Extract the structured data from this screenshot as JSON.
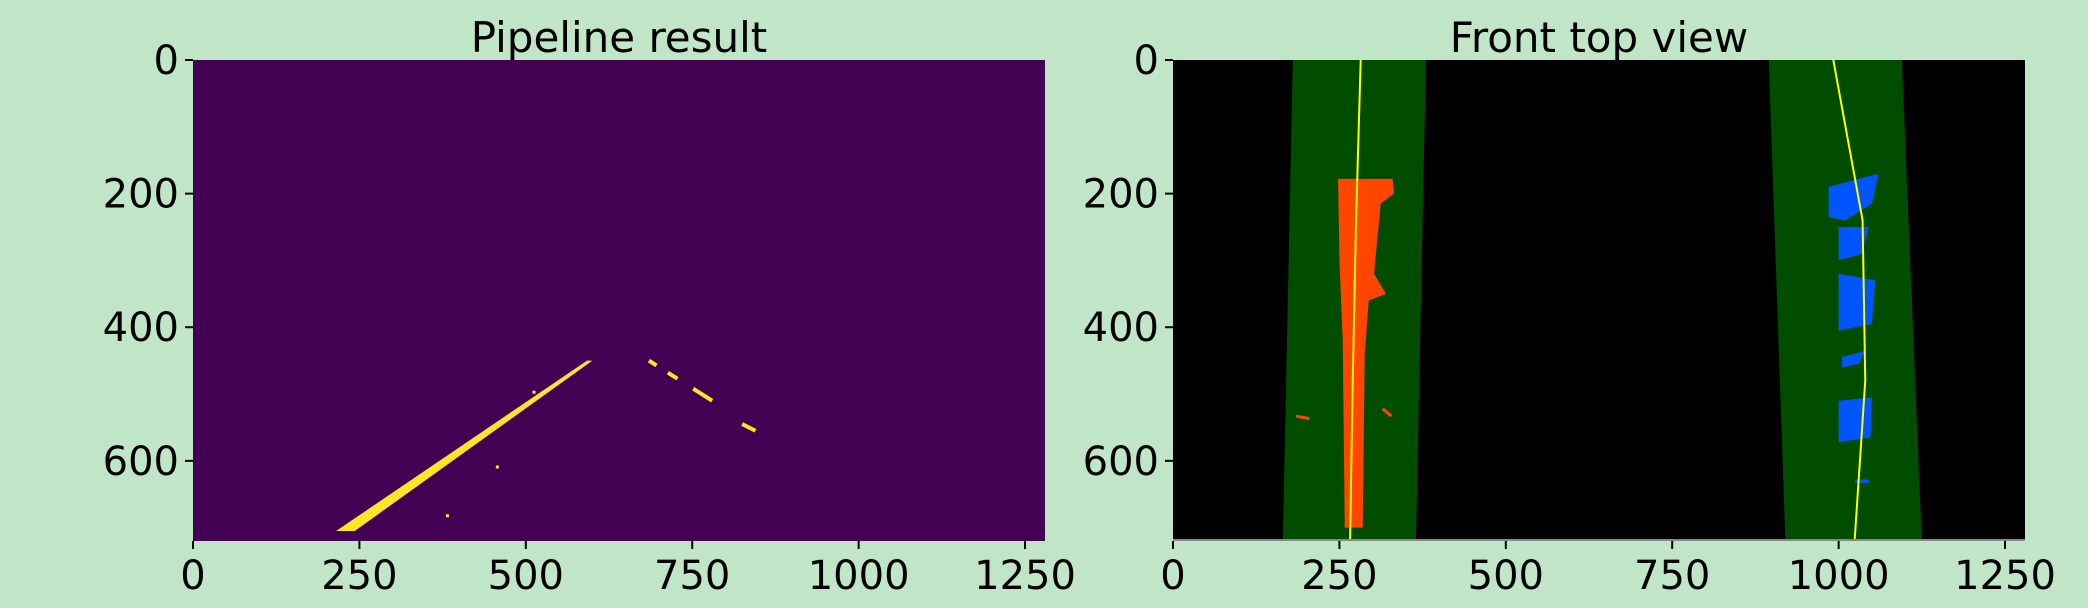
{
  "chart_data": [
    {
      "type": "image",
      "title": "Pipeline result",
      "xlim": [
        0,
        1280
      ],
      "ylim": [
        720,
        0
      ],
      "xticks": [
        0,
        250,
        500,
        750,
        1000,
        1250
      ],
      "yticks": [
        0,
        200,
        400,
        600
      ],
      "colors": {
        "background": "#440154",
        "pixels": "#fde725"
      },
      "detected_features": [
        {
          "kind": "lane-line",
          "from": [
            215,
            705
          ],
          "to": [
            600,
            450
          ]
        },
        {
          "kind": "lane-dashes",
          "from": [
            685,
            450
          ],
          "to": [
            780,
            510
          ]
        },
        {
          "kind": "lane-dashes",
          "from": [
            825,
            545
          ],
          "to": [
            845,
            555
          ]
        }
      ]
    },
    {
      "type": "image",
      "title": "Front top view",
      "xlim": [
        0,
        1280
      ],
      "ylim": [
        720,
        0
      ],
      "xticks": [
        0,
        250,
        500,
        750,
        1000,
        1250
      ],
      "yticks": [
        0,
        200,
        400,
        600
      ],
      "colors": {
        "background": "#000000",
        "window": "#004d00",
        "left_pixels": "#ff4500",
        "right_pixels": "#0055ff",
        "fit": "#ffff00"
      },
      "search_windows": [
        {
          "name": "left",
          "top": [
            180,
            380
          ],
          "bottom": [
            165,
            365
          ]
        },
        {
          "name": "right",
          "top": [
            895,
            1095
          ],
          "bottom": [
            920,
            1125
          ]
        }
      ],
      "fit_lines": [
        {
          "name": "left",
          "x": [
            282,
            275,
            270,
            266
          ],
          "y": [
            0,
            240,
            480,
            720
          ]
        },
        {
          "name": "right",
          "x": [
            992,
            1036,
            1040,
            1024
          ],
          "y": [
            0,
            240,
            480,
            720
          ]
        }
      ]
    }
  ]
}
